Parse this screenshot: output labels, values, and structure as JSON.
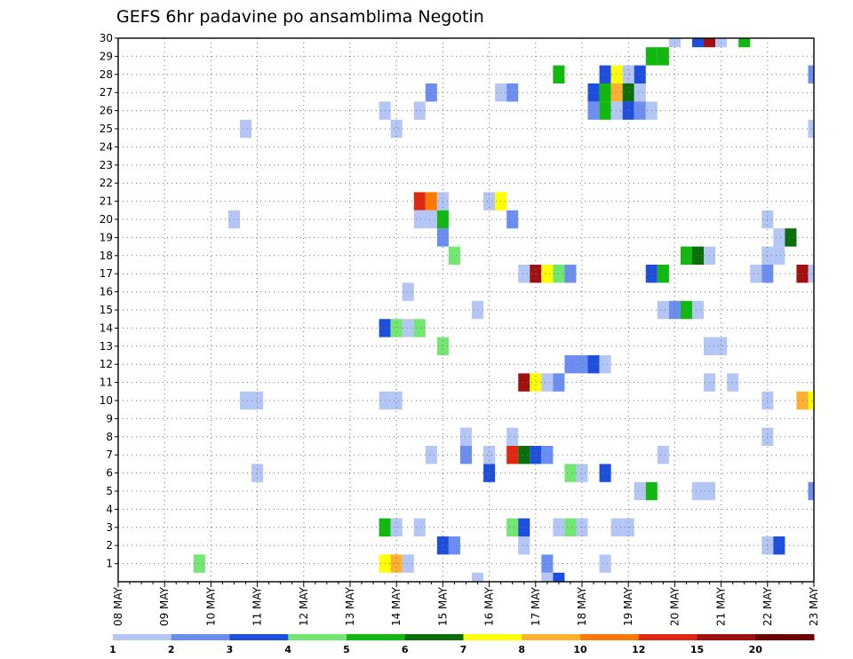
{
  "chart_data": {
    "type": "heatmap",
    "title": "GEFS 6hr padavine po ansamblima Negotin",
    "x_labels": [
      "08 MAY",
      "09 MAY",
      "10 MAY",
      "11 MAY",
      "12 MAY",
      "13 MAY",
      "14 MAY",
      "15 MAY",
      "16 MAY",
      "17 MAY",
      "18 MAY",
      "19 MAY",
      "20 MAY",
      "21 MAY",
      "22 MAY",
      "23 MAY"
    ],
    "y_labels": [
      "1",
      "2",
      "3",
      "4",
      "5",
      "6",
      "7",
      "8",
      "9",
      "10",
      "11",
      "12",
      "13",
      "14",
      "15",
      "16",
      "17",
      "18",
      "19",
      "20",
      "21",
      "22",
      "23",
      "24",
      "25",
      "26",
      "27",
      "28",
      "29",
      "30"
    ],
    "x_range_steps": [
      0,
      60
    ],
    "y_range": [
      0,
      30
    ],
    "grid": true,
    "colorbar": {
      "ticks": [
        "1",
        "2",
        "3",
        "4",
        "5",
        "6",
        "7",
        "8",
        "10",
        "12",
        "15",
        "20"
      ],
      "colors": [
        "#b4c6f5",
        "#6b8ef0",
        "#1e4fdc",
        "#72e872",
        "#10b810",
        "#0a6e0a",
        "#ffff00",
        "#ffb030",
        "#ff7800",
        "#e02810",
        "#a01010",
        "#6e0000"
      ]
    },
    "cells": [
      [
        48,
        30,
        1
      ],
      [
        50,
        30,
        3
      ],
      [
        51,
        30,
        11
      ],
      [
        52,
        30,
        1
      ],
      [
        54,
        30,
        5
      ],
      [
        46,
        29,
        5
      ],
      [
        47,
        29,
        5
      ],
      [
        38,
        28,
        5
      ],
      [
        42,
        28,
        3
      ],
      [
        43,
        28,
        7
      ],
      [
        44,
        28,
        1
      ],
      [
        45,
        28,
        3
      ],
      [
        60,
        28,
        2
      ],
      [
        27,
        27,
        2
      ],
      [
        33,
        27,
        1
      ],
      [
        34,
        27,
        2
      ],
      [
        41,
        27,
        3
      ],
      [
        42,
        27,
        5
      ],
      [
        43,
        27,
        8
      ],
      [
        44,
        27,
        6
      ],
      [
        45,
        27,
        1
      ],
      [
        23,
        26,
        1
      ],
      [
        26,
        26,
        1
      ],
      [
        41,
        26,
        2
      ],
      [
        42,
        26,
        5
      ],
      [
        43,
        26,
        1
      ],
      [
        44,
        26,
        3
      ],
      [
        45,
        26,
        2
      ],
      [
        46,
        26,
        1
      ],
      [
        11,
        25,
        1
      ],
      [
        24,
        25,
        1
      ],
      [
        60,
        25,
        1
      ],
      [
        26,
        21,
        10
      ],
      [
        27,
        21,
        9
      ],
      [
        28,
        21,
        1
      ],
      [
        32,
        21,
        1
      ],
      [
        33,
        21,
        7
      ],
      [
        10,
        20,
        1
      ],
      [
        26,
        20,
        1
      ],
      [
        27,
        20,
        1
      ],
      [
        28,
        20,
        5
      ],
      [
        34,
        20,
        2
      ],
      [
        56,
        20,
        1
      ],
      [
        28,
        19,
        2
      ],
      [
        57,
        19,
        1
      ],
      [
        58,
        19,
        6
      ],
      [
        29,
        18,
        4
      ],
      [
        49,
        18,
        5
      ],
      [
        50,
        18,
        6
      ],
      [
        51,
        18,
        1
      ],
      [
        56,
        18,
        1
      ],
      [
        57,
        18,
        1
      ],
      [
        35,
        17,
        1
      ],
      [
        36,
        17,
        11
      ],
      [
        37,
        17,
        7
      ],
      [
        38,
        17,
        4
      ],
      [
        39,
        17,
        2
      ],
      [
        46,
        17,
        3
      ],
      [
        47,
        17,
        5
      ],
      [
        55,
        17,
        1
      ],
      [
        56,
        17,
        2
      ],
      [
        59,
        17,
        11
      ],
      [
        60,
        17,
        1
      ],
      [
        25,
        16,
        1
      ],
      [
        31,
        15,
        1
      ],
      [
        47,
        15,
        1
      ],
      [
        48,
        15,
        2
      ],
      [
        49,
        15,
        5
      ],
      [
        50,
        15,
        1
      ],
      [
        23,
        14,
        3
      ],
      [
        24,
        14,
        4
      ],
      [
        25,
        14,
        1
      ],
      [
        26,
        14,
        4
      ],
      [
        28,
        13,
        4
      ],
      [
        51,
        13,
        1
      ],
      [
        52,
        13,
        1
      ],
      [
        39,
        12,
        2
      ],
      [
        40,
        12,
        2
      ],
      [
        41,
        12,
        3
      ],
      [
        42,
        12,
        1
      ],
      [
        35,
        11,
        11
      ],
      [
        36,
        11,
        7
      ],
      [
        37,
        11,
        1
      ],
      [
        38,
        11,
        2
      ],
      [
        51,
        11,
        1
      ],
      [
        53,
        11,
        1
      ],
      [
        11,
        10,
        1
      ],
      [
        12,
        10,
        1
      ],
      [
        23,
        10,
        1
      ],
      [
        24,
        10,
        1
      ],
      [
        56,
        10,
        1
      ],
      [
        59,
        10,
        8
      ],
      [
        60,
        10,
        7
      ],
      [
        30,
        8,
        1
      ],
      [
        34,
        8,
        1
      ],
      [
        56,
        8,
        1
      ],
      [
        27,
        7,
        1
      ],
      [
        30,
        7,
        2
      ],
      [
        32,
        7,
        1
      ],
      [
        34,
        7,
        10
      ],
      [
        35,
        7,
        6
      ],
      [
        36,
        7,
        3
      ],
      [
        37,
        7,
        2
      ],
      [
        47,
        7,
        1
      ],
      [
        12,
        6,
        1
      ],
      [
        32,
        6,
        3
      ],
      [
        39,
        6,
        4
      ],
      [
        40,
        6,
        1
      ],
      [
        42,
        6,
        3
      ],
      [
        45,
        5,
        1
      ],
      [
        46,
        5,
        5
      ],
      [
        50,
        5,
        1
      ],
      [
        51,
        5,
        1
      ],
      [
        60,
        5,
        2
      ],
      [
        23,
        3,
        5
      ],
      [
        24,
        3,
        1
      ],
      [
        26,
        3,
        1
      ],
      [
        34,
        3,
        4
      ],
      [
        35,
        3,
        3
      ],
      [
        38,
        3,
        1
      ],
      [
        39,
        3,
        4
      ],
      [
        40,
        3,
        1
      ],
      [
        43,
        3,
        1
      ],
      [
        44,
        3,
        1
      ],
      [
        28,
        2,
        3
      ],
      [
        29,
        2,
        2
      ],
      [
        35,
        2,
        1
      ],
      [
        56,
        2,
        1
      ],
      [
        57,
        2,
        3
      ],
      [
        7,
        1,
        4
      ],
      [
        23,
        1,
        7
      ],
      [
        24,
        1,
        8
      ],
      [
        25,
        1,
        1
      ],
      [
        37,
        1,
        2
      ],
      [
        42,
        1,
        1
      ],
      [
        31,
        0,
        1
      ],
      [
        37,
        0,
        1
      ],
      [
        38,
        0,
        3
      ]
    ]
  }
}
